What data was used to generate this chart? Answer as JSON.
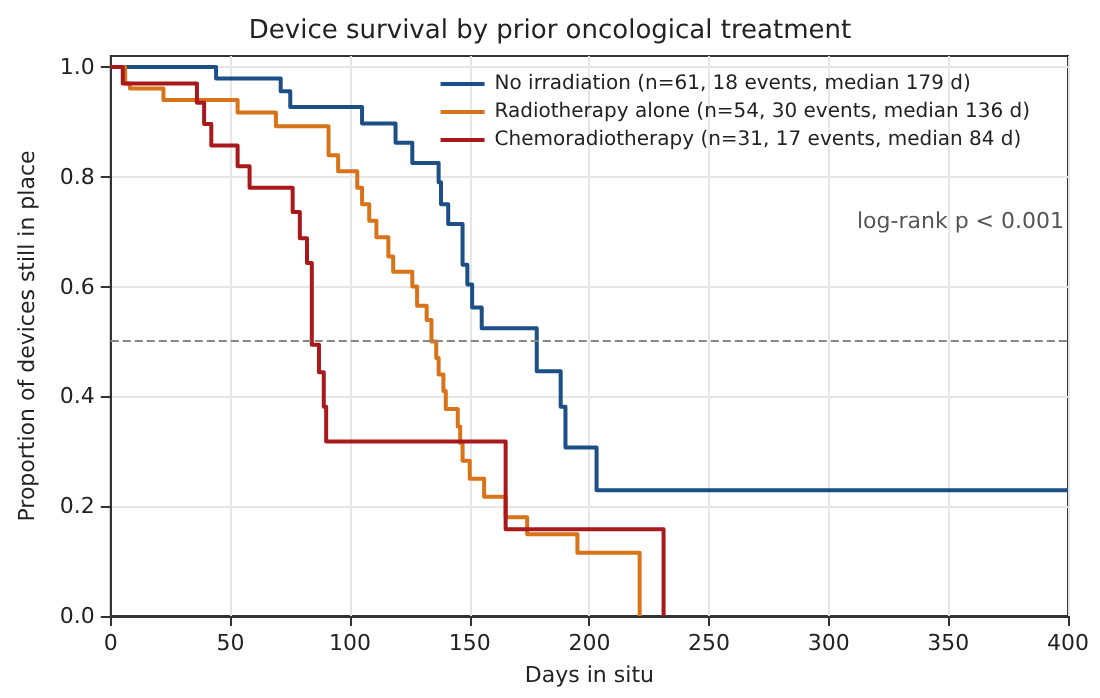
{
  "chart_data": {
    "type": "step",
    "title": "Device survival by prior oncological treatment",
    "xlabel": "Days in situ",
    "ylabel": "Proportion of devices still in place",
    "annotations": [
      "log-rank p < 0.001"
    ],
    "series": [
      {
        "name": "No irradiation (n=61, 18 events, median 179 d)",
        "color": "#1b4f86",
        "x": [
          0,
          44,
          71,
          75,
          105,
          119,
          126,
          137,
          138,
          141,
          147,
          149,
          151,
          155,
          178,
          188,
          190,
          203,
          400
        ],
        "values": [
          1,
          0.979,
          0.956,
          0.927,
          0.897,
          0.862,
          0.825,
          0.79,
          0.75,
          0.714,
          0.64,
          0.604,
          0.562,
          0.524,
          0.446,
          0.381,
          0.307,
          0.229,
          0.229
        ]
      },
      {
        "name": "Radiotherapy alone (n=54, 30 events, median 136 d)",
        "color": "#d9731a",
        "x": [
          0,
          6,
          8,
          22,
          53,
          69,
          91,
          95,
          103,
          105,
          108,
          111,
          116,
          118,
          126,
          128,
          132,
          134,
          136,
          137,
          139,
          140,
          145,
          146,
          147,
          150,
          156,
          165,
          174,
          195,
          221
        ],
        "values": [
          1,
          0.97,
          0.961,
          0.94,
          0.917,
          0.892,
          0.839,
          0.81,
          0.78,
          0.75,
          0.72,
          0.69,
          0.655,
          0.627,
          0.6,
          0.565,
          0.539,
          0.5,
          0.47,
          0.44,
          0.41,
          0.377,
          0.345,
          0.315,
          0.283,
          0.25,
          0.217,
          0.18,
          0.149,
          0.115,
          0
        ]
      },
      {
        "name": "Chemoradiotherapy (n=31, 17 events, median 84 d)",
        "color": "#a8191c",
        "x": [
          0,
          5,
          36,
          39,
          42,
          53,
          58,
          76,
          79,
          82,
          84,
          87,
          89,
          90,
          165,
          231
        ],
        "values": [
          1,
          0.97,
          0.935,
          0.896,
          0.857,
          0.819,
          0.78,
          0.736,
          0.688,
          0.643,
          0.494,
          0.444,
          0.381,
          0.318,
          0.158,
          0
        ]
      }
    ],
    "xlim": [
      0,
      400
    ],
    "xticks": [
      0,
      50,
      100,
      150,
      200,
      250,
      300,
      350,
      400
    ],
    "ylim": [
      0,
      1.02
    ],
    "yticks": [
      {
        "value": 0,
        "label": "0.0"
      },
      {
        "value": 0.2,
        "label": "0.2"
      },
      {
        "value": 0.4,
        "label": "0.4"
      },
      {
        "value": 0.6,
        "label": "0.6"
      },
      {
        "value": 0.8,
        "label": "0.8"
      },
      {
        "value": 1,
        "label": "1.0"
      }
    ],
    "ref_lines": [
      {
        "axis": "y",
        "value": 0.5,
        "color": "#888888",
        "line_style": "dashed"
      }
    ],
    "grid": true,
    "legend": "top right",
    "marker": "none",
    "line_style": "solid"
  }
}
